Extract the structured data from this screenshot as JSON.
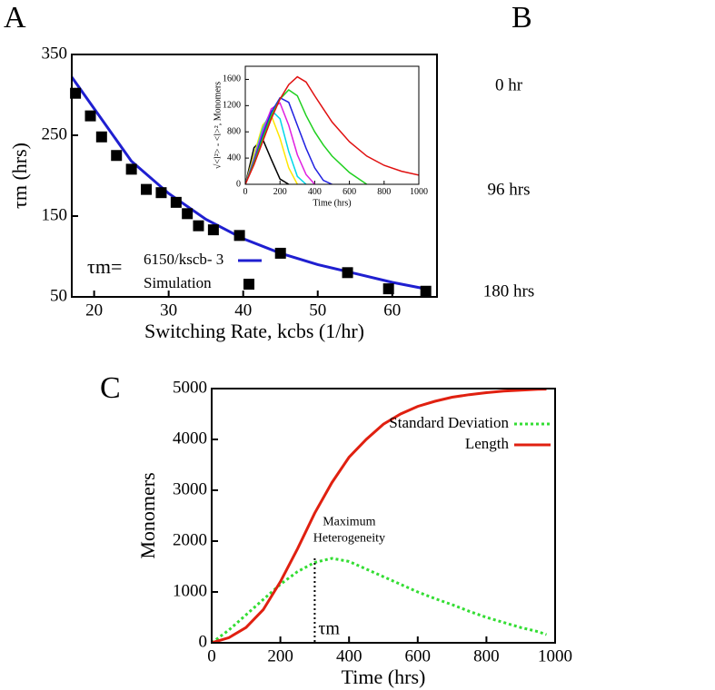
{
  "panel_labels": [
    "A",
    "B",
    "C"
  ],
  "afm_images": {
    "row_labels": [
      "0 hr",
      "96 hrs",
      "180 hrs"
    ]
  },
  "chart_data": [
    {
      "type": "scatter",
      "x_label": "Switching Rate, kcbs (1/hr)",
      "y_label": "τm (hrs)",
      "xlim": [
        17,
        66
      ],
      "xticks": [
        20,
        30,
        40,
        50,
        60
      ],
      "ylim": [
        50,
        350
      ],
      "yticks": [
        50,
        150,
        250,
        350
      ],
      "legend": "lower left",
      "legend_prefix": "τm=",
      "series": [
        {
          "name": "6150/kscb- 3",
          "color": "#1f1fd0",
          "style": "line",
          "x": [
            17,
            20,
            25,
            30,
            35,
            40,
            45,
            50,
            55,
            60,
            65
          ],
          "values": [
            322,
            283,
            218,
            178,
            146,
            122,
            104,
            90,
            79,
            68,
            59
          ]
        },
        {
          "name": "Simulation",
          "color": "#000000",
          "style": "marker",
          "x": [
            17.5,
            19.5,
            21,
            23,
            25,
            27,
            29,
            31,
            32.5,
            34,
            36,
            39.5,
            45,
            54,
            59.5,
            64.5
          ],
          "values": [
            302,
            274,
            248,
            225,
            208,
            183,
            179,
            167,
            153,
            138,
            133,
            126,
            104,
            80,
            60,
            57
          ]
        }
      ]
    },
    {
      "type": "line",
      "x_label": "Time (hrs)",
      "y_label": "√<l²> - <l>², Monomers",
      "xlim": [
        0,
        1000
      ],
      "xticks": [
        0,
        200,
        400,
        600,
        800,
        1000
      ],
      "ylim": [
        0,
        1800
      ],
      "yticks": [
        0,
        400,
        800,
        1200,
        1600
      ],
      "x": [
        0,
        50,
        100,
        150,
        200,
        250,
        300,
        350,
        400,
        450,
        500,
        600,
        700,
        800,
        900,
        1000
      ],
      "series": [
        {
          "color": "#000000",
          "values": [
            0,
            560,
            690,
            380,
            80,
            0,
            null,
            null,
            null,
            null,
            null,
            null,
            null,
            null,
            null,
            null
          ]
        },
        {
          "color": "#ffe600",
          "values": [
            0,
            450,
            900,
            1050,
            700,
            250,
            0,
            null,
            null,
            null,
            null,
            null,
            null,
            null,
            null,
            null
          ]
        },
        {
          "color": "#00d8e8",
          "values": [
            0,
            400,
            850,
            1130,
            1000,
            500,
            120,
            0,
            null,
            null,
            null,
            null,
            null,
            null,
            null,
            null
          ]
        },
        {
          "color": "#e020e0",
          "values": [
            0,
            380,
            800,
            1150,
            1240,
            900,
            450,
            150,
            0,
            null,
            null,
            null,
            null,
            null,
            null,
            null
          ]
        },
        {
          "color": "#2020e0",
          "values": [
            0,
            350,
            750,
            1100,
            1320,
            1250,
            900,
            550,
            250,
            60,
            0,
            null,
            null,
            null,
            null,
            null
          ]
        },
        {
          "color": "#20d020",
          "values": [
            0,
            330,
            700,
            1050,
            1300,
            1440,
            1350,
            1050,
            800,
            600,
            430,
            180,
            0,
            null,
            null,
            null
          ]
        },
        {
          "color": "#e01010",
          "values": [
            0,
            300,
            650,
            1000,
            1300,
            1520,
            1640,
            1560,
            1350,
            1150,
            950,
            650,
            430,
            290,
            200,
            140
          ]
        }
      ]
    },
    {
      "type": "line",
      "x_label": "Time (hrs)",
      "y_label": "Monomers",
      "xlim": [
        0,
        1000
      ],
      "xticks": [
        0,
        200,
        400,
        600,
        800,
        1000
      ],
      "ylim": [
        0,
        5000
      ],
      "yticks": [
        0,
        1000,
        2000,
        3000,
        4000,
        5000
      ],
      "legend": "upper right",
      "x": [
        0,
        50,
        100,
        150,
        200,
        250,
        300,
        350,
        400,
        450,
        500,
        550,
        600,
        650,
        700,
        750,
        800,
        850,
        900,
        950,
        975
      ],
      "series": [
        {
          "name": "Standard Deviation",
          "color": "#33dd33",
          "line_style": "dotted",
          "values": [
            0,
            250,
            550,
            850,
            1150,
            1400,
            1580,
            1660,
            1600,
            1450,
            1300,
            1150,
            1000,
            870,
            750,
            620,
            500,
            400,
            300,
            220,
            160
          ]
        },
        {
          "name": "Length",
          "color": "#e02010",
          "line_style": "solid",
          "values": [
            0,
            100,
            300,
            650,
            1200,
            1850,
            2550,
            3150,
            3650,
            4000,
            4300,
            4500,
            4650,
            4750,
            4830,
            4880,
            4920,
            4950,
            4970,
            4985,
            4990
          ]
        }
      ],
      "annotation": {
        "lines": [
          "Maximum",
          "Heterogeneity"
        ],
        "marker_x": 300,
        "marker_y": 1660,
        "marker_label": "τm"
      }
    }
  ]
}
